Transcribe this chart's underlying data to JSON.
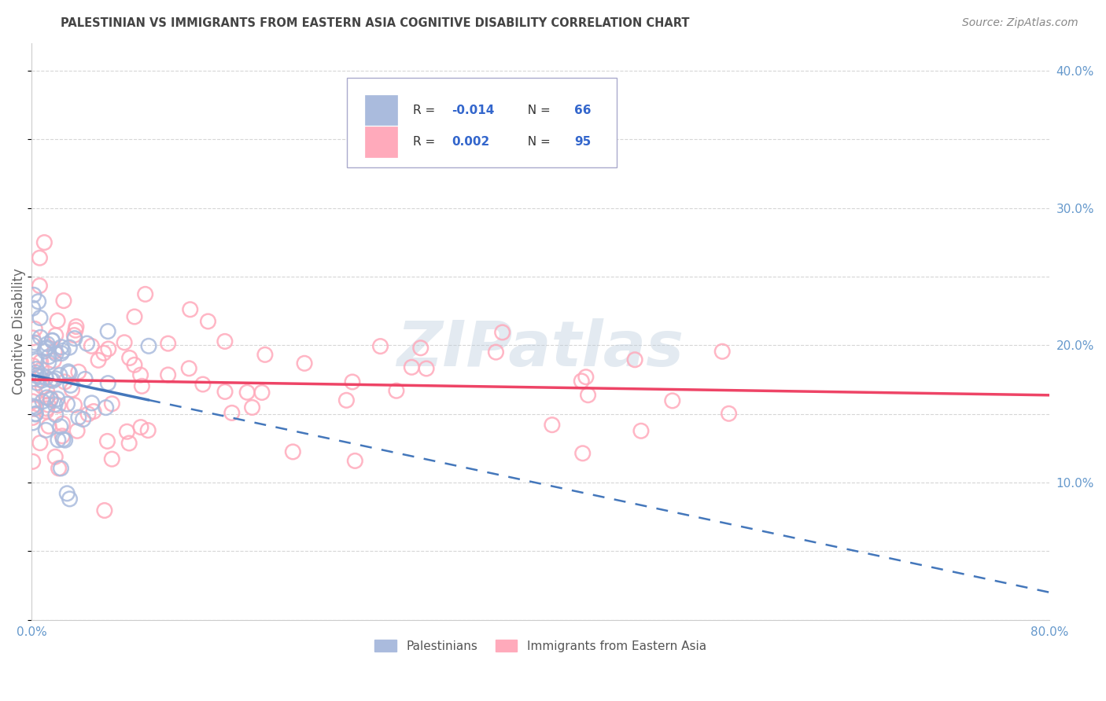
{
  "title": "PALESTINIAN VS IMMIGRANTS FROM EASTERN ASIA COGNITIVE DISABILITY CORRELATION CHART",
  "source": "Source: ZipAtlas.com",
  "ylabel": "Cognitive Disability",
  "xlim": [
    0.0,
    0.8
  ],
  "ylim": [
    0.0,
    0.42
  ],
  "xticks": [
    0.0,
    0.1,
    0.2,
    0.3,
    0.4,
    0.5,
    0.6,
    0.7,
    0.8
  ],
  "xticklabels": [
    "0.0%",
    "",
    "",
    "",
    "",
    "",
    "",
    "",
    "80.0%"
  ],
  "yticks_right": [
    0.1,
    0.2,
    0.3,
    0.4
  ],
  "yticklabels_right": [
    "10.0%",
    "20.0%",
    "30.0%",
    "40.0%"
  ],
  "color_blue": "#AABBDD",
  "color_pink": "#FFAABB",
  "color_line_blue": "#4477BB",
  "color_line_pink": "#EE4466",
  "watermark_color": "#BBCCDD",
  "watermark_alpha": 0.4,
  "tick_color": "#6699CC",
  "grid_color": "#CCCCCC",
  "title_color": "#444444",
  "source_color": "#888888",
  "ylabel_color": "#666666"
}
